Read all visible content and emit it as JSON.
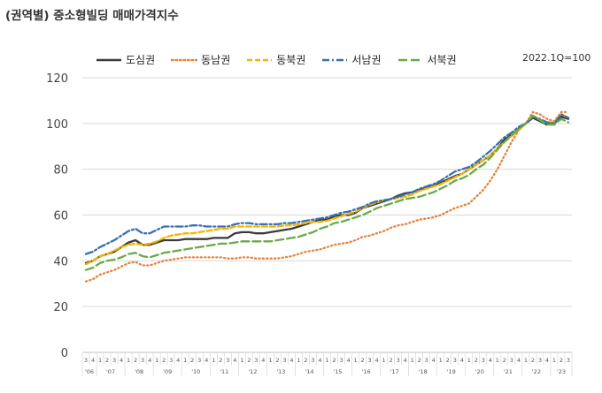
{
  "title": "(권역별) 중소형빌딩 매매가격지수",
  "note": "2022.1Q=100",
  "colors": {
    "dosim": "#3a3a3a",
    "dongnam": "#e8823a",
    "dongbuk": "#f4b400",
    "seonam": "#3a6fb5",
    "seobuk": "#6aaa4a"
  },
  "chart_data": {
    "type": "line",
    "title": "(권역별) 중소형빌딩 매매가격지수",
    "ylim": [
      0,
      120
    ],
    "yticks": [
      0,
      20,
      40,
      60,
      80,
      100,
      120
    ],
    "grid": true,
    "legend_position": "top",
    "x_quarter_labels": [
      "3",
      "4",
      "1",
      "2",
      "3",
      "4",
      "1",
      "2",
      "3",
      "4",
      "1",
      "2",
      "3",
      "4",
      "1",
      "2",
      "3",
      "4",
      "1",
      "2",
      "3",
      "4",
      "1",
      "2",
      "3",
      "4",
      "1",
      "2",
      "3",
      "4",
      "1",
      "2",
      "3",
      "4",
      "1",
      "2",
      "3",
      "4",
      "1",
      "2",
      "3",
      "4",
      "1",
      "2",
      "3",
      "4",
      "1",
      "2",
      "3",
      "4",
      "1",
      "2",
      "3",
      "4",
      "1",
      "2",
      "3",
      "4",
      "1",
      "2",
      "3",
      "4",
      "1",
      "2",
      "3",
      "4",
      "1",
      "2",
      "3"
    ],
    "x_year_labels": [
      {
        "label": "'06",
        "start": 0,
        "end": 1
      },
      {
        "label": "'07",
        "start": 2,
        "end": 5
      },
      {
        "label": "'08",
        "start": 6,
        "end": 9
      },
      {
        "label": "'09",
        "start": 10,
        "end": 13
      },
      {
        "label": "'10",
        "start": 14,
        "end": 17
      },
      {
        "label": "'11",
        "start": 18,
        "end": 21
      },
      {
        "label": "'12",
        "start": 22,
        "end": 25
      },
      {
        "label": "'13",
        "start": 26,
        "end": 29
      },
      {
        "label": "'14",
        "start": 30,
        "end": 33
      },
      {
        "label": "'15",
        "start": 34,
        "end": 37
      },
      {
        "label": "'16",
        "start": 38,
        "end": 41
      },
      {
        "label": "'17",
        "start": 42,
        "end": 45
      },
      {
        "label": "'18",
        "start": 46,
        "end": 49
      },
      {
        "label": "'19",
        "start": 50,
        "end": 53
      },
      {
        "label": "'20",
        "start": 54,
        "end": 57
      },
      {
        "label": "'21",
        "start": 58,
        "end": 61
      },
      {
        "label": "'22",
        "start": 62,
        "end": 65
      },
      {
        "label": "'23",
        "start": 66,
        "end": 68
      }
    ],
    "series": [
      {
        "name": "도심권",
        "key": "dosim",
        "dash": "solid",
        "values": [
          39,
          40,
          42,
          43,
          44,
          46,
          48,
          49,
          47,
          47,
          48,
          49,
          49,
          49,
          49.5,
          49.5,
          49.5,
          49.5,
          50,
          50,
          50,
          52,
          52.5,
          52.5,
          52,
          52,
          52.5,
          53,
          53.5,
          54,
          55,
          56,
          57,
          58,
          58,
          59.5,
          60,
          60,
          61,
          63,
          64,
          65,
          66,
          67,
          68.5,
          69.5,
          70,
          71,
          72,
          73,
          74,
          75.5,
          77,
          78,
          80,
          82,
          84,
          86,
          89,
          93,
          95,
          97.5,
          100,
          102.5,
          101,
          99.5,
          100,
          103,
          102
        ]
      },
      {
        "name": "동남권",
        "key": "dongnam",
        "dash": "dot",
        "values": [
          31,
          32,
          34,
          35,
          36,
          37.5,
          39,
          39.5,
          38,
          38,
          39,
          40,
          40.5,
          41,
          41.5,
          41.5,
          41.5,
          41.5,
          41.5,
          41.5,
          41,
          41,
          41.5,
          41.5,
          41,
          41,
          41,
          41,
          41.5,
          42,
          43,
          44,
          44.5,
          45,
          46,
          47,
          47.5,
          48,
          49,
          50.5,
          51,
          52,
          53,
          54.5,
          55.5,
          56,
          57,
          58,
          58.5,
          59,
          60,
          61.5,
          63,
          64,
          65,
          68,
          71,
          75,
          80,
          86,
          92,
          97,
          100,
          105,
          104,
          102,
          101,
          105,
          105
        ]
      },
      {
        "name": "동북권",
        "key": "dongbuk",
        "dash": "dash",
        "values": [
          38.5,
          40,
          42,
          43,
          44.5,
          46,
          47,
          47.5,
          47,
          47.5,
          48.5,
          50,
          51,
          51.5,
          52,
          52,
          52.5,
          53,
          53.5,
          54,
          54,
          55,
          55,
          55,
          55,
          55,
          55,
          55,
          55.5,
          55.5,
          56,
          56.5,
          57,
          57,
          57.5,
          58.5,
          59.5,
          60.5,
          61.5,
          63,
          64.5,
          65.5,
          66.5,
          67,
          67.5,
          68,
          69,
          70.5,
          71.5,
          72.5,
          73.5,
          75,
          76.5,
          78,
          80,
          82,
          84,
          86,
          89,
          92,
          94.5,
          97,
          100,
          103.5,
          101.5,
          100.5,
          100.5,
          104,
          102.5
        ]
      },
      {
        "name": "서남권",
        "key": "seonam",
        "dash": "dashdot",
        "values": [
          43,
          44,
          46,
          47.5,
          49,
          51,
          53,
          54,
          52,
          52,
          53.5,
          55,
          55,
          55,
          55,
          55.5,
          55.5,
          55,
          55,
          55,
          55,
          56,
          56.5,
          56.5,
          56,
          56,
          56,
          56,
          56.5,
          56.5,
          57,
          57.5,
          58,
          58.5,
          59,
          60,
          61,
          61.5,
          62.5,
          63.5,
          65,
          66,
          66.5,
          67,
          68,
          69,
          70,
          71.5,
          72.5,
          73.5,
          75,
          77,
          79,
          80,
          81,
          83,
          85.5,
          88,
          91,
          94,
          96,
          98.5,
          100,
          103,
          102,
          100.5,
          100,
          104,
          102.5
        ]
      },
      {
        "name": "서북권",
        "key": "seobuk",
        "dash": "longdash",
        "values": [
          36,
          37,
          39,
          40,
          40.5,
          41.5,
          43,
          43.5,
          42,
          41.5,
          42.5,
          43.5,
          44,
          44.5,
          45,
          45.5,
          46,
          46.5,
          47,
          47.5,
          47.5,
          48,
          48.5,
          48.5,
          48.5,
          48.5,
          48.5,
          49,
          49.5,
          50,
          50.5,
          51.5,
          52.5,
          54,
          55,
          56.5,
          57,
          58,
          59,
          60,
          61.5,
          63,
          64,
          65,
          66,
          67,
          67.5,
          68,
          69,
          70,
          71.5,
          73,
          75,
          76,
          77.5,
          80,
          82,
          85,
          88.5,
          92,
          95,
          97.5,
          100,
          103.5,
          101.5,
          99.5,
          99.5,
          102,
          100.5
        ]
      }
    ]
  }
}
